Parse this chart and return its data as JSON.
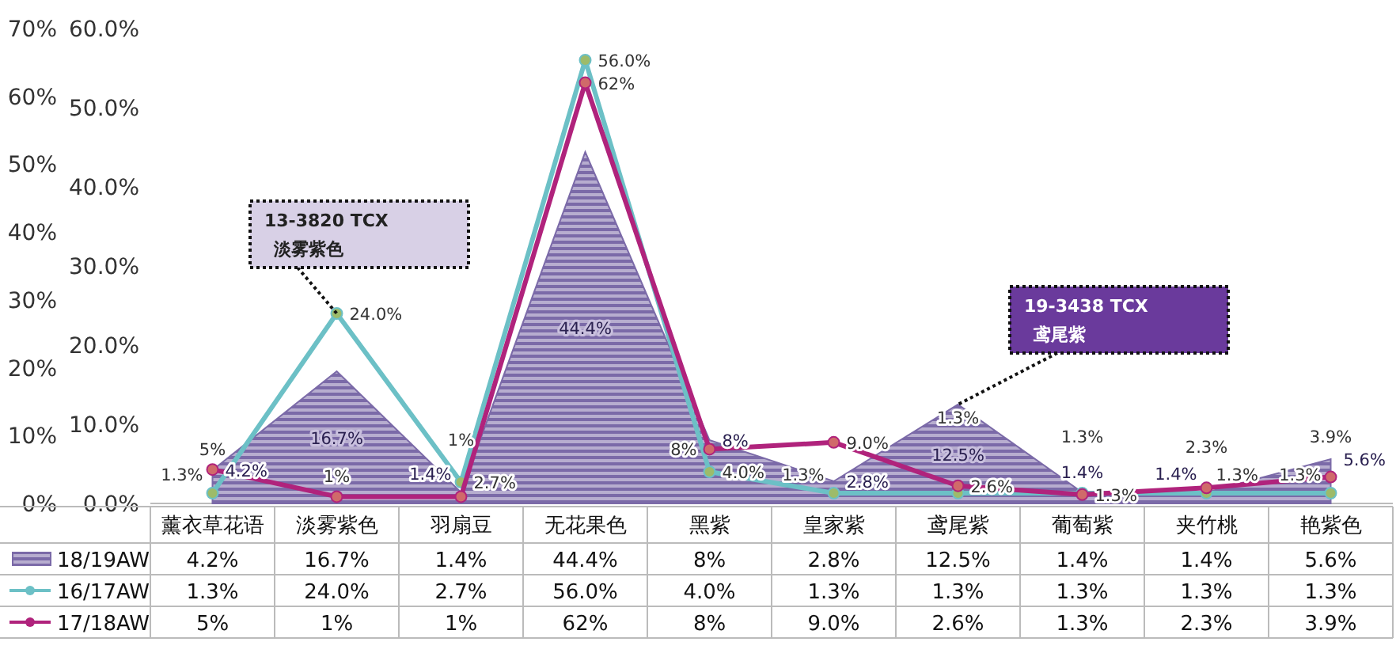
{
  "chart_data": {
    "type": "area",
    "categories": [
      "薰衣草花语",
      "淡雾紫色",
      "羽扇豆",
      "无花果色",
      "黑紫",
      "皇家紫",
      "鸢尾紫",
      "葡萄紫",
      "夹竹桃",
      "艳紫色"
    ],
    "series": [
      {
        "name": "18/19AW",
        "type": "area",
        "axis": "y",
        "color": "#7b6aa8",
        "values": [
          4.2,
          16.7,
          1.4,
          44.4,
          8,
          2.8,
          12.5,
          1.4,
          1.4,
          5.6
        ],
        "value_labels": [
          "4.2%",
          "16.7%",
          "1.4%",
          "44.4%",
          "8%",
          "2.8%",
          "12.5%",
          "1.4%",
          "1.4%",
          "5.6%"
        ]
      },
      {
        "name": "16/17AW",
        "type": "line",
        "marker": "circle",
        "axis": "y",
        "color": "#6cc0c6",
        "values": [
          1.3,
          24.0,
          2.7,
          56.0,
          4.0,
          1.3,
          1.3,
          1.3,
          1.3,
          1.3
        ],
        "value_labels": [
          "1.3%",
          "24.0%",
          "2.7%",
          "56.0%",
          "4.0%",
          "1.3%",
          "1.3%",
          "1.3%",
          "1.3%",
          "1.3%"
        ]
      },
      {
        "name": "17/18AW",
        "type": "line",
        "marker": "circle",
        "axis": "y2",
        "color": "#b0237c",
        "values": [
          5,
          1,
          1,
          62,
          8,
          9.0,
          2.6,
          1.3,
          2.3,
          3.9
        ],
        "value_labels": [
          "5%",
          "1%",
          "1%",
          "62%",
          "8%",
          "9.0%",
          "2.6%",
          "1.3%",
          "2.3%",
          "3.9%"
        ]
      }
    ],
    "ylim": [
      0,
      60
    ],
    "yticks": [
      {
        "value": 0,
        "label": "0.0%"
      },
      {
        "value": 10,
        "label": "10.0%"
      },
      {
        "value": 20,
        "label": "20.0%"
      },
      {
        "value": 30,
        "label": "30.0%"
      },
      {
        "value": 40,
        "label": "40.0%"
      },
      {
        "value": 50,
        "label": "50.0%"
      },
      {
        "value": 60,
        "label": "60.0%"
      }
    ],
    "y2lim": [
      0,
      70
    ],
    "y2ticks": [
      {
        "value": 0,
        "label": "0%"
      },
      {
        "value": 10,
        "label": "10%"
      },
      {
        "value": 20,
        "label": "20%"
      },
      {
        "value": 30,
        "label": "30%"
      },
      {
        "value": 40,
        "label": "40%"
      },
      {
        "value": 50,
        "label": "50%"
      },
      {
        "value": 60,
        "label": "60%"
      },
      {
        "value": 70,
        "label": "70%"
      }
    ],
    "annotations": [
      {
        "text": "13-3820 TCX\n淡雾紫色",
        "x": "淡雾紫色",
        "y": 24.0
      },
      {
        "text": "19-3438 TCX\n鸢尾紫",
        "x": "鸢尾紫",
        "y": 12.5
      }
    ],
    "legend": "bottom",
    "grid": false
  }
}
